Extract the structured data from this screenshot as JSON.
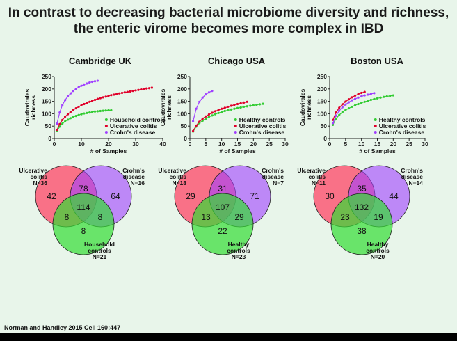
{
  "slide": {
    "title_line1": "In contrast to decreasing bacterial microbiome diversity and richness,",
    "title_line2": "the enteric virome becomes more complex in IBD",
    "citation": "Norman and Handley 2015 Cell 160:447",
    "colors": {
      "background": "#e8f5ea",
      "green": "#33cc33",
      "red": "#e0002a",
      "purple": "#a040ff"
    }
  },
  "panels": [
    {
      "title": "Cambridge UK"
    },
    {
      "title": "Chicago USA"
    },
    {
      "title": "Boston USA"
    }
  ],
  "chart_data": [
    {
      "type": "line",
      "title": "Cambridge UK",
      "xlabel": "# of Samples",
      "ylabel": "Caudovirales richness",
      "xlim": [
        0,
        40
      ],
      "ylim": [
        0,
        250
      ],
      "xticks": [
        0,
        10,
        20,
        30,
        40
      ],
      "yticks": [
        0,
        50,
        100,
        150,
        200,
        250
      ],
      "legend_position": "bottom-right",
      "series": [
        {
          "name": "Household controls",
          "color": "#33cc33",
          "x": [
            1,
            2,
            3,
            4,
            5,
            6,
            7,
            8,
            9,
            10,
            11,
            12,
            13,
            14,
            15,
            16,
            17,
            18,
            19,
            20,
            21
          ],
          "y": [
            30,
            48,
            60,
            69,
            76,
            82,
            87,
            91,
            95,
            98,
            101,
            103,
            105,
            107,
            109,
            110,
            111,
            112,
            113,
            114,
            114
          ]
        },
        {
          "name": "Ulcerative colitis",
          "color": "#e0002a",
          "x": [
            1,
            2,
            3,
            4,
            5,
            6,
            7,
            8,
            9,
            10,
            11,
            12,
            13,
            14,
            15,
            16,
            17,
            18,
            19,
            20,
            21,
            22,
            23,
            24,
            25,
            26,
            27,
            28,
            29,
            30,
            31,
            32,
            33,
            34,
            35,
            36
          ],
          "y": [
            35,
            58,
            75,
            88,
            98,
            107,
            115,
            122,
            128,
            134,
            139,
            144,
            148,
            152,
            156,
            160,
            163,
            166,
            169,
            172,
            175,
            177,
            180,
            182,
            184,
            186,
            188,
            190,
            192,
            194,
            196,
            198,
            200,
            202,
            203,
            205
          ]
        },
        {
          "name": "Crohn's disease",
          "color": "#a040ff",
          "x": [
            1,
            2,
            3,
            4,
            5,
            6,
            7,
            8,
            9,
            10,
            11,
            12,
            13,
            14,
            15,
            16
          ],
          "y": [
            60,
            105,
            135,
            155,
            170,
            182,
            192,
            200,
            207,
            213,
            218,
            222,
            226,
            229,
            231,
            233
          ]
        }
      ]
    },
    {
      "type": "line",
      "title": "Chicago USA",
      "xlabel": "# of Samples",
      "ylabel": "Caudovirales richness",
      "xlim": [
        0,
        30
      ],
      "ylim": [
        0,
        250
      ],
      "xticks": [
        0,
        5,
        10,
        15,
        20,
        25,
        30
      ],
      "yticks": [
        0,
        50,
        100,
        150,
        200,
        250
      ],
      "legend_position": "bottom-right",
      "series": [
        {
          "name": "Healthy controls",
          "color": "#33cc33",
          "x": [
            1,
            2,
            3,
            4,
            5,
            6,
            7,
            8,
            9,
            10,
            11,
            12,
            13,
            14,
            15,
            16,
            17,
            18,
            19,
            20,
            21,
            22,
            23
          ],
          "y": [
            28,
            48,
            62,
            72,
            80,
            87,
            93,
            98,
            103,
            107,
            111,
            114,
            117,
            120,
            123,
            125,
            128,
            130,
            132,
            134,
            136,
            138,
            140
          ]
        },
        {
          "name": "Ulcerative colitis",
          "color": "#e0002a",
          "x": [
            1,
            2,
            3,
            4,
            5,
            6,
            7,
            8,
            9,
            10,
            11,
            12,
            13,
            14,
            15,
            16,
            17,
            18
          ],
          "y": [
            30,
            52,
            68,
            80,
            89,
            97,
            104,
            110,
            115,
            120,
            124,
            128,
            132,
            136,
            139,
            142,
            145,
            148
          ]
        },
        {
          "name": "Crohn's disease",
          "color": "#a040ff",
          "x": [
            1,
            2,
            3,
            4,
            5,
            6,
            7
          ],
          "y": [
            70,
            120,
            148,
            165,
            178,
            186,
            192
          ]
        }
      ]
    },
    {
      "type": "line",
      "title": "Boston USA",
      "xlabel": "# of Samples",
      "ylabel": "Caudovirales richness",
      "xlim": [
        0,
        30
      ],
      "ylim": [
        0,
        250
      ],
      "xticks": [
        0,
        5,
        10,
        15,
        20,
        25,
        30
      ],
      "yticks": [
        0,
        50,
        100,
        150,
        200,
        250
      ],
      "legend_position": "bottom-right",
      "series": [
        {
          "name": "Healthy controls",
          "color": "#33cc33",
          "x": [
            1,
            2,
            3,
            4,
            5,
            6,
            7,
            8,
            9,
            10,
            11,
            12,
            13,
            14,
            15,
            16,
            17,
            18,
            19,
            20
          ],
          "y": [
            55,
            80,
            95,
            106,
            115,
            122,
            128,
            134,
            139,
            144,
            148,
            152,
            156,
            159,
            162,
            165,
            168,
            170,
            172,
            174
          ]
        },
        {
          "name": "Ulcerative colitis",
          "color": "#e0002a",
          "x": [
            1,
            2,
            3,
            4,
            5,
            6,
            7,
            8,
            9,
            10,
            11
          ],
          "y": [
            75,
            105,
            124,
            138,
            149,
            158,
            166,
            173,
            179,
            184,
            188
          ]
        },
        {
          "name": "Crohn's disease",
          "color": "#a040ff",
          "x": [
            1,
            2,
            3,
            4,
            5,
            6,
            7,
            8,
            9,
            10,
            11,
            12,
            13,
            14
          ],
          "y": [
            62,
            92,
            112,
            126,
            137,
            146,
            154,
            160,
            165,
            170,
            174,
            177,
            180,
            183
          ]
        }
      ]
    }
  ],
  "venn": [
    {
      "labels": {
        "uc": "Ulcerative\ncolitis\nN=36",
        "cd": "Crohn's\ndisease\nN=16",
        "ctrl": "Household\ncontrols\nN=21"
      },
      "regions": {
        "uc_only": "42",
        "uc_cd": "78",
        "cd_only": "64",
        "all": "114",
        "uc_ctrl": "8",
        "cd_ctrl": "8",
        "ctrl_only": "8"
      }
    },
    {
      "labels": {
        "uc": "Ulcerative\ncolitis\nN=18",
        "cd": "Crohn's\ndisease\nN=7",
        "ctrl": "Healthy\ncontrols\nN=23"
      },
      "regions": {
        "uc_only": "29",
        "uc_cd": "31",
        "cd_only": "71",
        "all": "107",
        "uc_ctrl": "13",
        "cd_ctrl": "29",
        "ctrl_only": "22"
      }
    },
    {
      "labels": {
        "uc": "Ulcerative\ncolitis\nN=11",
        "cd": "Crohn's\ndisease\nN=14",
        "ctrl": "Healthy\ncontrols\nN=20"
      },
      "regions": {
        "uc_only": "30",
        "uc_cd": "35",
        "cd_only": "44",
        "all": "132",
        "uc_ctrl": "23",
        "cd_ctrl": "19",
        "ctrl_only": "38"
      }
    }
  ]
}
